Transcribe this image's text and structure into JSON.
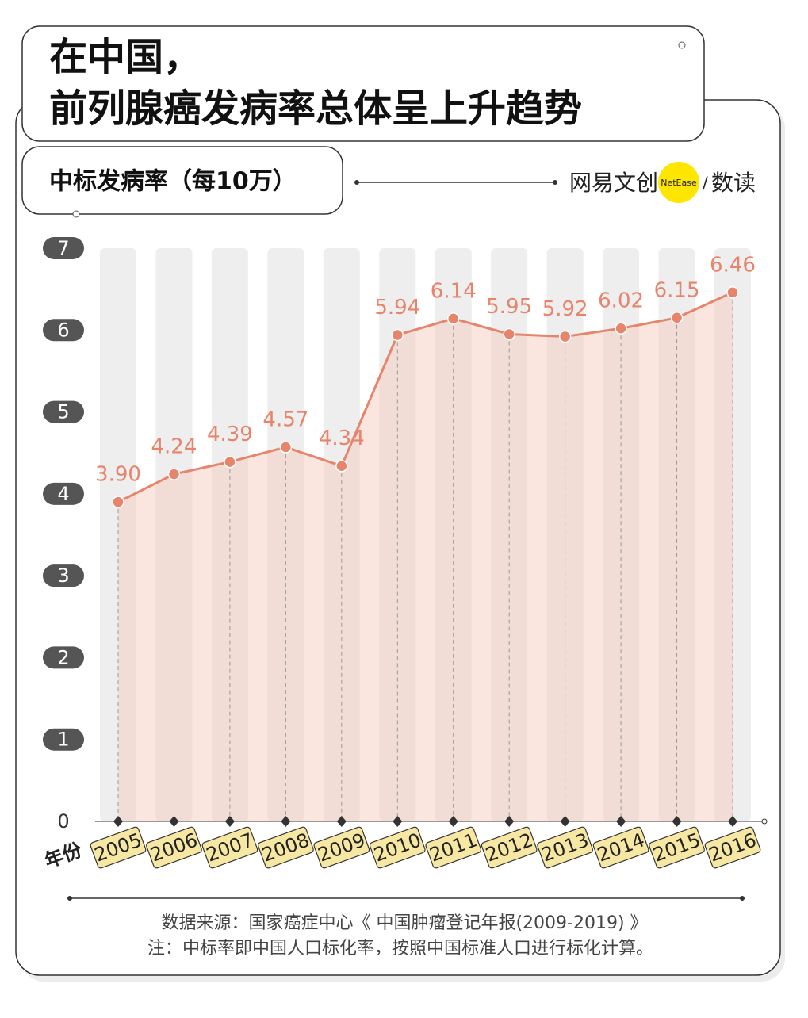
{
  "chart_data": {
    "type": "line",
    "title": [
      "在中国，",
      "前列腺癌发病率总体呈上升趋势"
    ],
    "y_label": "中标发病率（每10万）",
    "x_label": "年份",
    "brand": [
      "网易文创",
      "NetEase",
      "/",
      "数读"
    ],
    "categories": [
      "2005",
      "2006",
      "2007",
      "2008",
      "2009",
      "2010",
      "2011",
      "2012",
      "2013",
      "2014",
      "2015",
      "2016"
    ],
    "values": [
      3.9,
      4.24,
      4.39,
      4.57,
      4.34,
      5.94,
      6.14,
      5.95,
      5.92,
      6.02,
      6.15,
      6.46
    ],
    "value_labels": [
      "3.90",
      "4.24",
      "4.39",
      "4.57",
      "4.34",
      "5.94",
      "6.14",
      "5.95",
      "5.92",
      "6.02",
      "6.15",
      "6.46"
    ],
    "color": "#e6846c",
    "ylim": [
      0,
      7
    ],
    "yticks": [
      0,
      1,
      2,
      3,
      4,
      5,
      6,
      7
    ],
    "source": "数据来源：国家癌症中心《 中国肿瘤登记年报(2009-2019) 》",
    "note": "注：中标率即中国人口标化率，按照中国标准人口进行标化计算。"
  }
}
